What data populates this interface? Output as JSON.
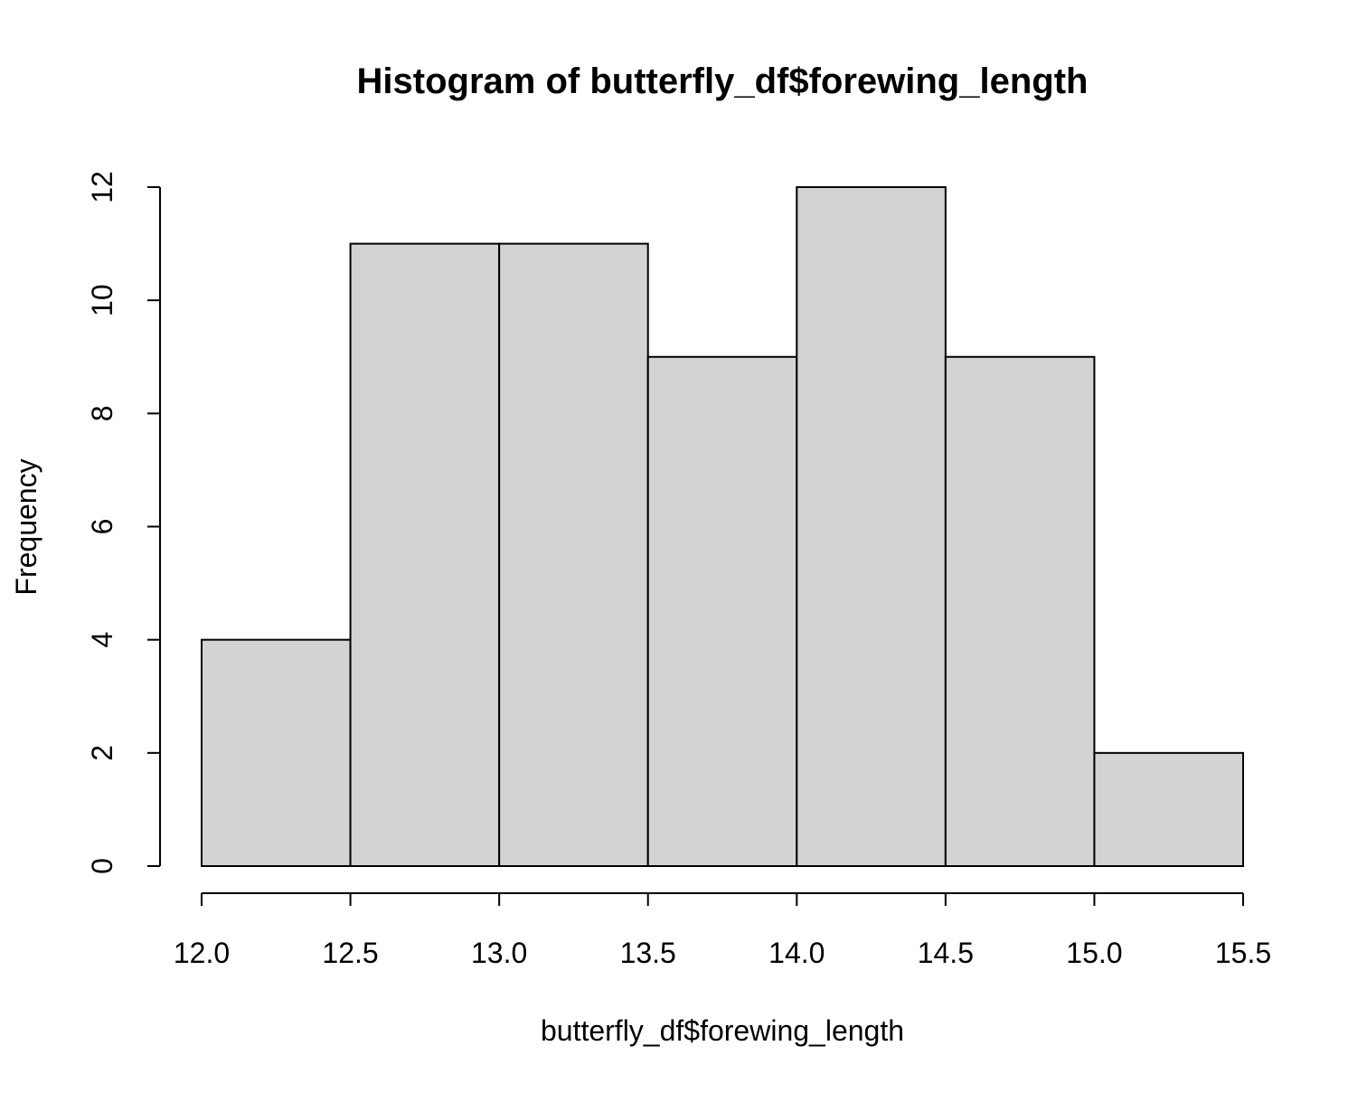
{
  "chart_data": {
    "type": "bar",
    "subtype": "histogram",
    "title": "Histogram of butterfly_df$forewing_length",
    "xlabel": "butterfly_df$forewing_length",
    "ylabel": "Frequency",
    "bins": [
      {
        "start": 12.0,
        "end": 12.5,
        "count": 4
      },
      {
        "start": 12.5,
        "end": 13.0,
        "count": 11
      },
      {
        "start": 13.0,
        "end": 13.5,
        "count": 11
      },
      {
        "start": 13.5,
        "end": 14.0,
        "count": 9
      },
      {
        "start": 14.0,
        "end": 14.5,
        "count": 12
      },
      {
        "start": 14.5,
        "end": 15.0,
        "count": 9
      },
      {
        "start": 15.0,
        "end": 15.5,
        "count": 2
      }
    ],
    "xlim": [
      12.0,
      15.5
    ],
    "ylim": [
      0,
      12
    ],
    "x_ticks": [
      "12.0",
      "12.5",
      "13.0",
      "13.5",
      "14.0",
      "14.5",
      "15.0",
      "15.5"
    ],
    "y_ticks": [
      "0",
      "2",
      "4",
      "6",
      "8",
      "10",
      "12"
    ],
    "bar_fill": "#d3d3d3",
    "bar_stroke": "#000000",
    "grid": false,
    "legend": "none"
  }
}
